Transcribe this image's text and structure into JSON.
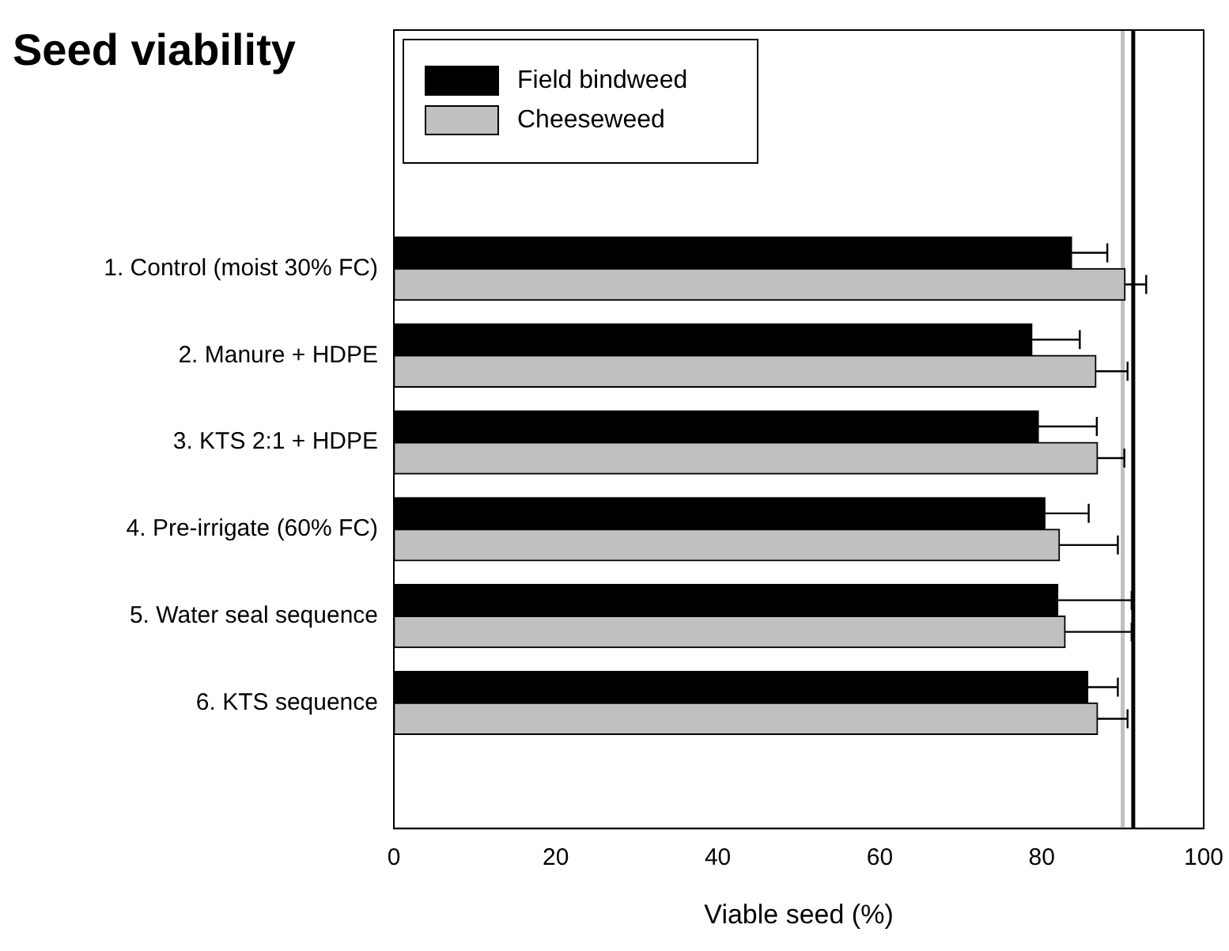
{
  "chart_data": {
    "type": "bar",
    "orientation": "horizontal",
    "title": "Seed viability",
    "xlabel": "Viable seed (%)",
    "categories": [
      "1. Control (moist 30% FC)",
      "2. Manure + HDPE",
      "3. KTS 2:1 + HDPE",
      "4. Pre-irrigate (60% FC)",
      "5. Water seal sequence",
      "6. KTS sequence"
    ],
    "series": [
      {
        "name": "Field bindweed",
        "color": "#000000",
        "values": [
          83.7,
          78.8,
          79.6,
          80.4,
          82.0,
          85.7
        ],
        "errors": [
          [
            83.7,
            88.1
          ],
          [
            78.8,
            84.7
          ],
          [
            79.6,
            86.8
          ],
          [
            80.4,
            85.8
          ],
          [
            82.0,
            91.1
          ],
          [
            85.7,
            89.4
          ]
        ]
      },
      {
        "name": "Cheeseweed",
        "color": "#c0c0c0",
        "values": [
          90.3,
          86.7,
          86.9,
          82.2,
          82.9,
          86.9
        ],
        "errors": [
          [
            90.3,
            92.9
          ],
          [
            86.7,
            90.6
          ],
          [
            86.9,
            90.2
          ],
          [
            82.2,
            89.4
          ],
          [
            82.9,
            91.1
          ],
          [
            86.9,
            90.6
          ]
        ]
      }
    ],
    "xlim": [
      0,
      100
    ],
    "xticks": [
      0,
      20,
      40,
      60,
      80,
      100
    ],
    "grid": false,
    "legend": "top left",
    "ref_lines": [
      {
        "axis": "x",
        "value": 90,
        "color": "#c0c0c0"
      },
      {
        "axis": "x",
        "value": 91.3,
        "color": "#000000"
      }
    ]
  }
}
